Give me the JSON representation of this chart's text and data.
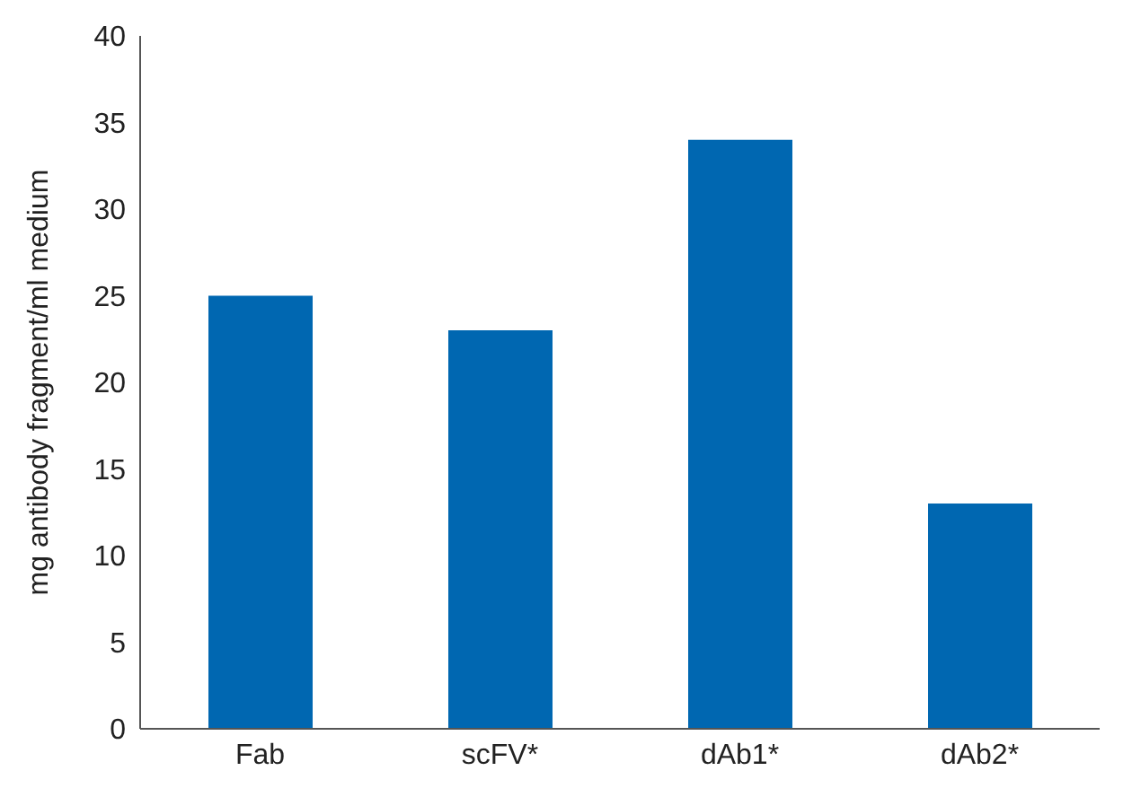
{
  "chart_data": {
    "type": "bar",
    "ylabel": "mg antibody fragment/ml medium",
    "categories": [
      "Fab",
      "scFV*",
      "dAb1*",
      "dAb2*"
    ],
    "values": [
      25,
      23,
      34,
      13
    ],
    "color": "#0067b1",
    "ylim": [
      0,
      40
    ],
    "yticks": [
      0,
      5,
      10,
      15,
      20,
      25,
      30,
      35,
      40
    ],
    "grid": false,
    "legend": false
  }
}
